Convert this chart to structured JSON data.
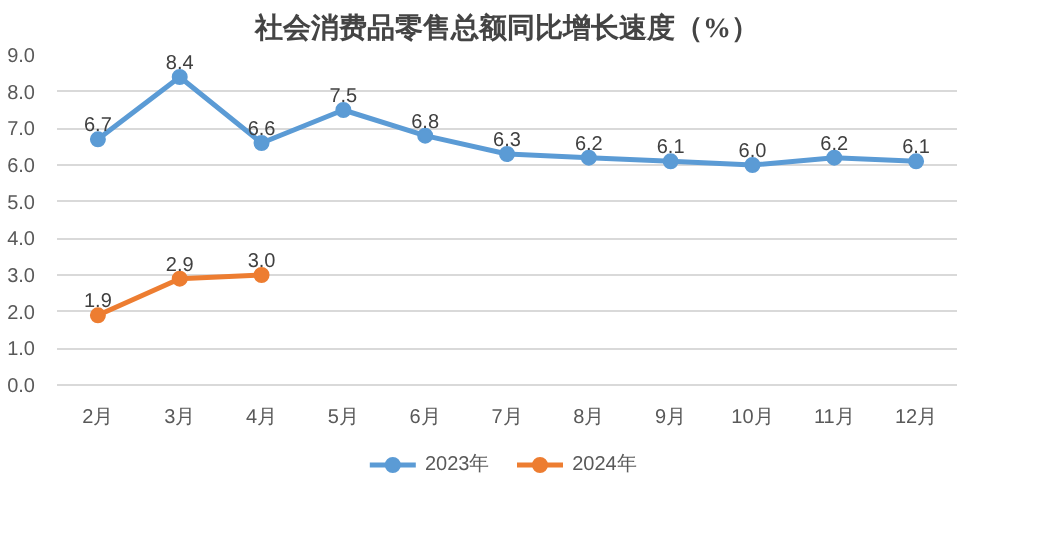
{
  "chart_data": {
    "type": "line",
    "title": "社会消费品零售总额同比增长速度（%）",
    "categories": [
      "2月",
      "3月",
      "4月",
      "5月",
      "6月",
      "7月",
      "8月",
      "9月",
      "10月",
      "11月",
      "12月"
    ],
    "series": [
      {
        "name": "2023年",
        "color": "#5b9bd5",
        "values": [
          6.7,
          8.4,
          6.6,
          7.5,
          6.8,
          6.3,
          6.2,
          6.1,
          6.0,
          6.2,
          6.1
        ],
        "value_labels": [
          "6.7",
          "8.4",
          "6.6",
          "7.5",
          "6.8",
          "6.3",
          "6.2",
          "6.1",
          "6.0",
          "6.2",
          "6.1"
        ]
      },
      {
        "name": "2024年",
        "color": "#ed7d31",
        "values": [
          1.9,
          2.9,
          3.0,
          null,
          null,
          null,
          null,
          null,
          null,
          null,
          null
        ],
        "value_labels": [
          "1.9",
          "2.9",
          "3.0",
          null,
          null,
          null,
          null,
          null,
          null,
          null,
          null
        ]
      }
    ],
    "ylim": [
      0,
      9
    ],
    "yticks": [
      {
        "value": 0,
        "label": "0.0"
      },
      {
        "value": 1,
        "label": "1.0"
      },
      {
        "value": 2,
        "label": "2.0"
      },
      {
        "value": 3,
        "label": "3.0"
      },
      {
        "value": 4,
        "label": "4.0"
      },
      {
        "value": 5,
        "label": "5.0"
      },
      {
        "value": 6,
        "label": "6.0"
      },
      {
        "value": 7,
        "label": "7.0"
      },
      {
        "value": 8,
        "label": "8.0"
      },
      {
        "value": 9,
        "label": "9.0"
      }
    ],
    "grid": "y",
    "legend": "bottom",
    "marker": "circle",
    "line_style": "solid",
    "data_labels": true
  }
}
